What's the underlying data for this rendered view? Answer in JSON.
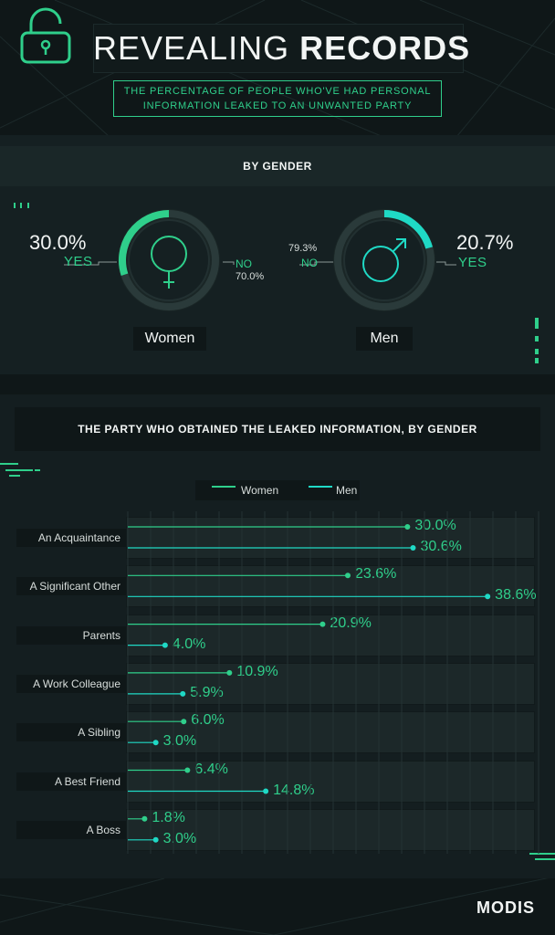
{
  "header": {
    "title_light": "REVEALING",
    "title_bold": "RECORDS",
    "subtitle_line1": "THE PERCENTAGE OF PEOPLE WHO'VE HAD PERSONAL",
    "subtitle_line2": "INFORMATION LEAKED TO AN UNWANTED PARTY"
  },
  "colors": {
    "accent_green": "#2fcf8b",
    "accent_teal": "#1fd9c5",
    "background": "#0f1718"
  },
  "chart_data": [
    {
      "type": "pie",
      "title": "BY GENDER",
      "groups": [
        {
          "name": "Women",
          "yes_label": "YES",
          "no_label": "NO",
          "yes_value": 30.0,
          "no_value": 70.0,
          "yes_text": "30.0%",
          "no_text": "70.0%",
          "icon": "female-symbol-icon"
        },
        {
          "name": "Men",
          "yes_label": "YES",
          "no_label": "NO",
          "yes_value": 20.7,
          "no_value": 79.3,
          "yes_text": "20.7%",
          "no_text": "79.3%",
          "icon": "male-symbol-icon"
        }
      ]
    },
    {
      "type": "bar",
      "title": "THE PARTY WHO OBTAINED THE LEAKED INFORMATION, BY GENDER",
      "orientation": "horizontal",
      "categories": [
        "An Acquaintance",
        "A Significant Other",
        "Parents",
        "A Work Colleague",
        "A Sibling",
        "A Best Friend",
        "A Boss"
      ],
      "series": [
        {
          "name": "Women",
          "values": [
            30.0,
            23.6,
            20.9,
            10.9,
            6.0,
            6.4,
            1.8
          ],
          "labels": [
            "30.0%",
            "23.6%",
            "20.9%",
            "10.9%",
            "6.0%",
            "6.4%",
            "1.8%"
          ]
        },
        {
          "name": "Men",
          "values": [
            30.6,
            38.6,
            4.0,
            5.9,
            3.0,
            14.8,
            3.0
          ],
          "labels": [
            "30.6%",
            "38.6%",
            "4.0%",
            "5.9%",
            "3.0%",
            "14.8%",
            "3.0%"
          ]
        }
      ],
      "xlim": [
        0,
        40
      ],
      "grid": true,
      "legend_position": "top-center"
    }
  ],
  "footer": {
    "brand": "MODIS"
  }
}
